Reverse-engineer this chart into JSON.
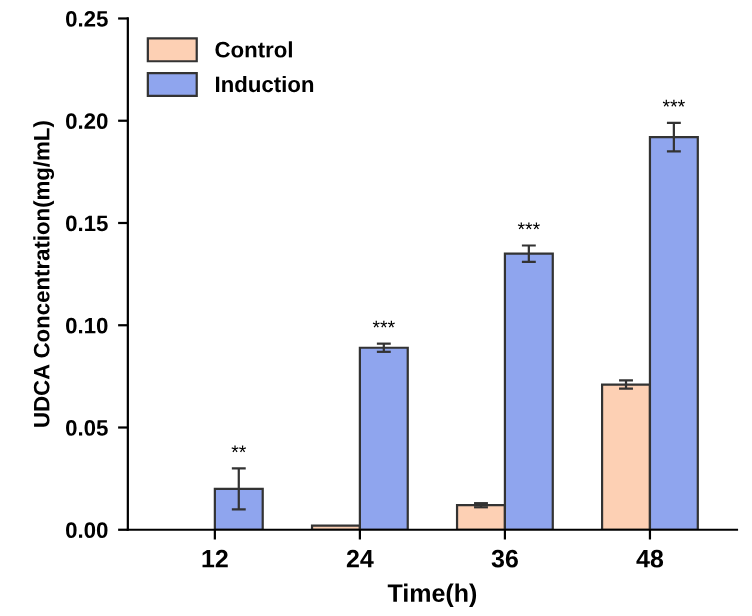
{
  "chart_data": {
    "type": "bar",
    "xlabel": "Time(h)",
    "ylabel": "UDCA Concentration(mg/mL)",
    "categories": [
      "12",
      "24",
      "36",
      "48"
    ],
    "series": [
      {
        "name": "Control",
        "color": "#fdd0b4",
        "values": [
          null,
          0.002,
          0.012,
          0.071
        ],
        "errors": [
          null,
          null,
          0.001,
          0.002
        ]
      },
      {
        "name": "Induction",
        "color": "#8fa5ee",
        "values": [
          0.02,
          0.089,
          0.135,
          0.192
        ],
        "errors": [
          0.01,
          0.002,
          0.004,
          0.007
        ]
      }
    ],
    "annotations": [
      "**",
      "***",
      "***",
      "***"
    ],
    "ylim": [
      0,
      0.25
    ],
    "yticks": [
      {
        "value": 0,
        "label": "0.00"
      },
      {
        "value": 0.05,
        "label": "0.05"
      },
      {
        "value": 0.1,
        "label": "0.10"
      },
      {
        "value": 0.15,
        "label": "0.15"
      },
      {
        "value": 0.2,
        "label": "0.20"
      },
      {
        "value": 0.25,
        "label": "0.25"
      }
    ],
    "legend": "top left",
    "grid": false
  }
}
